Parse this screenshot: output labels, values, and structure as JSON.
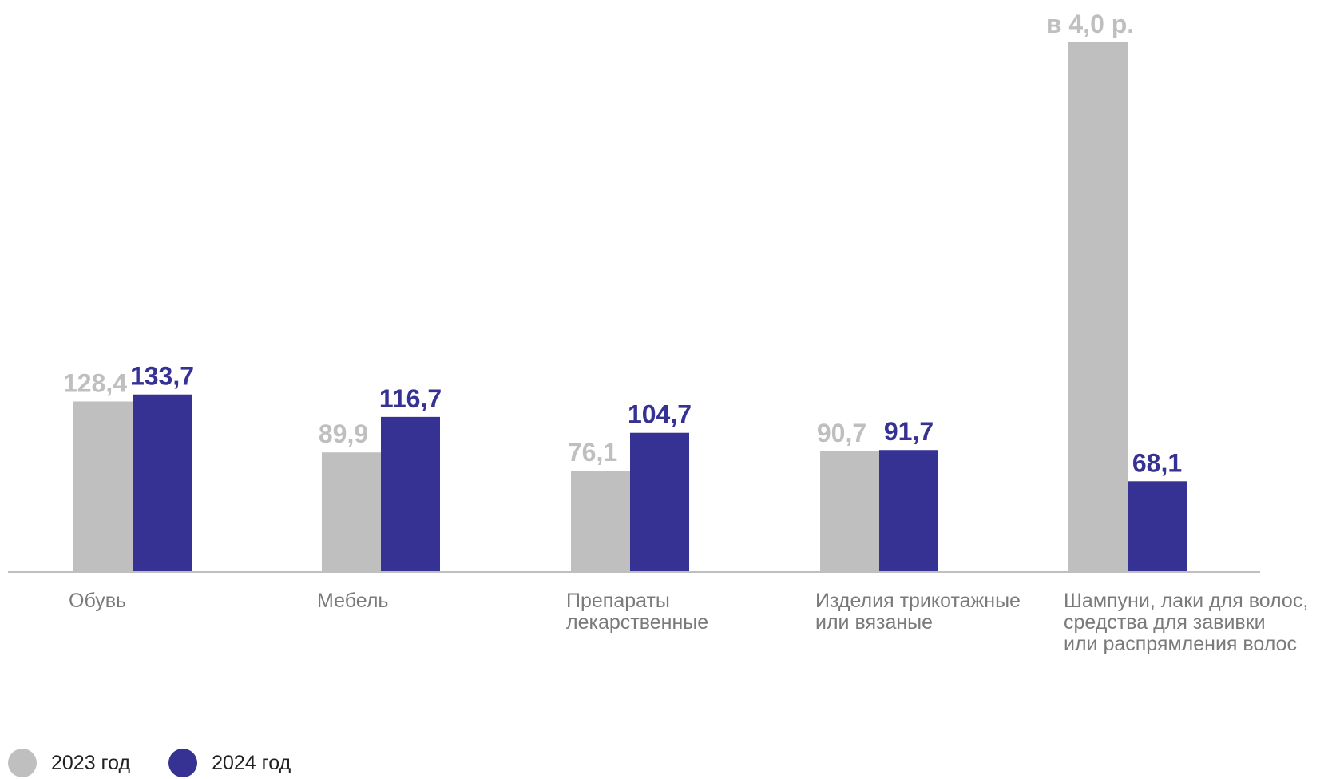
{
  "chart_data": {
    "type": "bar",
    "categories": [
      [
        "Обувь"
      ],
      [
        "Мебель"
      ],
      [
        "Препараты",
        "лекарственные"
      ],
      [
        "Изделия трикотажные",
        "или вязаные"
      ],
      [
        "Шампуни, лаки для волос,",
        "средства для завивки",
        "или распрямления волос"
      ]
    ],
    "series": [
      {
        "name": "2023 год",
        "color": "#bfbfbf",
        "values": [
          128.4,
          89.9,
          76.1,
          90.7,
          400
        ],
        "labels": [
          "128,4",
          "89,9",
          "76,1",
          "90,7",
          "в 4,0 р."
        ]
      },
      {
        "name": "2024 год",
        "color": "#353294",
        "values": [
          133.7,
          116.7,
          104.7,
          91.7,
          68.1
        ],
        "labels": [
          "133,7",
          "116,7",
          "104,7",
          "91,7",
          "68,1"
        ]
      }
    ],
    "ylim": [
      0,
      400
    ],
    "grid": false,
    "legend_position": "bottom-left"
  }
}
